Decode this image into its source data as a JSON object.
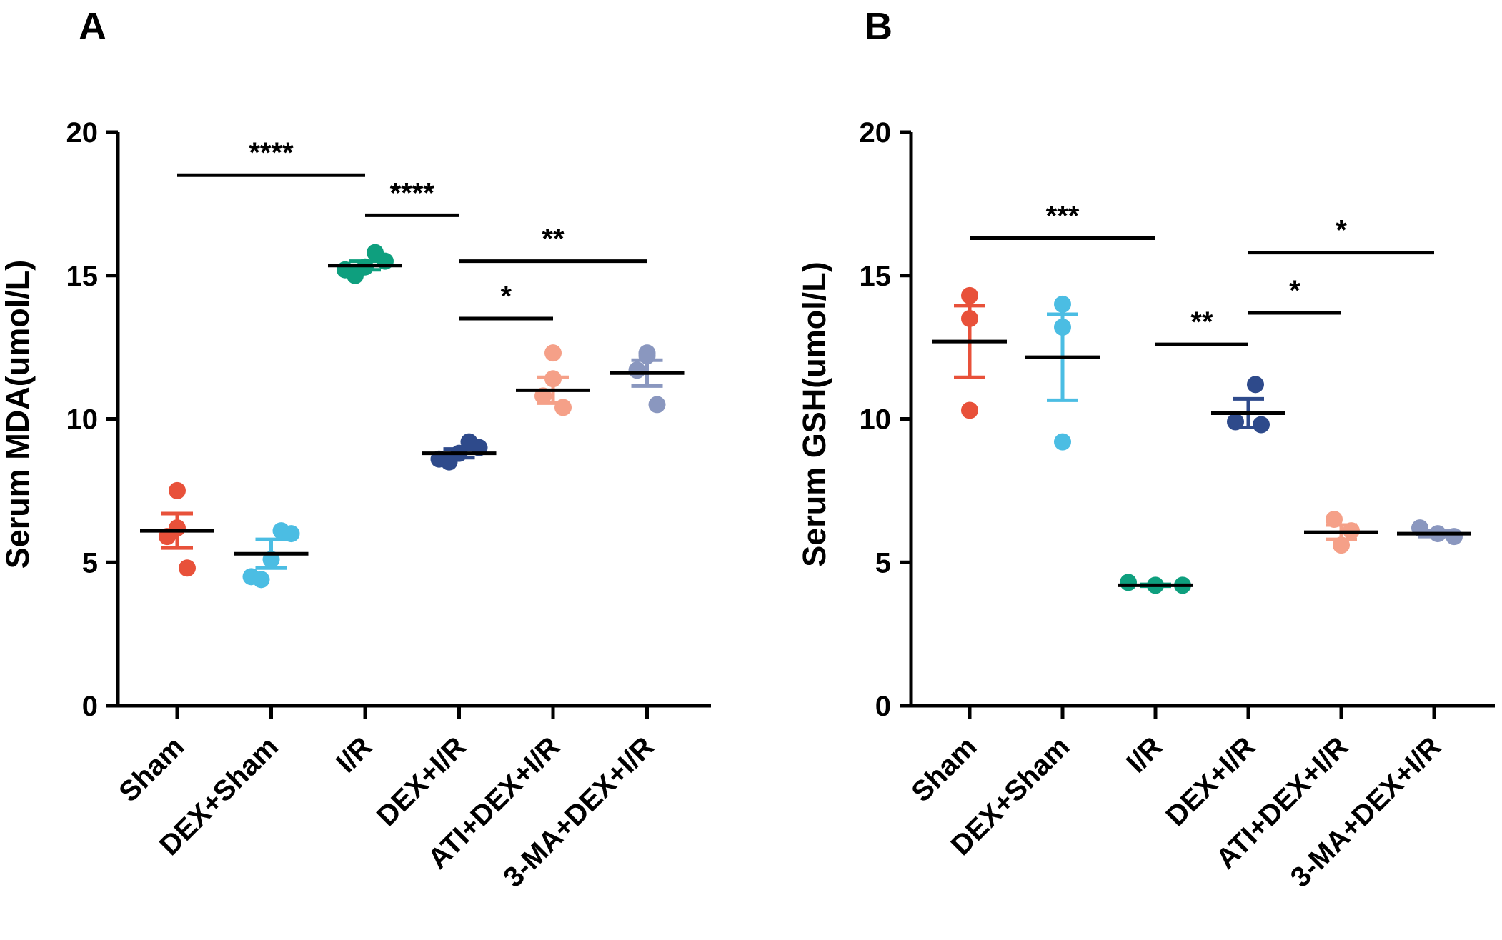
{
  "chart_data": [
    {
      "type": "scatter",
      "panel_label": "A",
      "ylabel": "Serum MDA(umol/L)",
      "ylim": [
        0,
        20
      ],
      "yticks": [
        0,
        5,
        10,
        15,
        20
      ],
      "categories": [
        "Sham",
        "DEX+Sham",
        "I/R",
        "DEX+I/R",
        "ATI+DEX+I/R",
        "3-MA+DEX+I/R"
      ],
      "colors": [
        "#e8513a",
        "#4bbde3",
        "#0e9f7e",
        "#2e4a8b",
        "#f5a088",
        "#8a97bf"
      ],
      "groups": [
        {
          "name": "Sham",
          "points": [
            7.5,
            6.2,
            5.9,
            4.8
          ],
          "mean": 6.1,
          "sem": 0.6
        },
        {
          "name": "DEX+Sham",
          "points": [
            6.1,
            6.0,
            5.1,
            4.5,
            4.4
          ],
          "mean": 5.3,
          "sem": 0.5
        },
        {
          "name": "I/R",
          "points": [
            15.8,
            15.5,
            15.3,
            15.2,
            15.0
          ],
          "mean": 15.35,
          "sem": 0.15
        },
        {
          "name": "DEX+I/R",
          "points": [
            9.2,
            9.0,
            8.8,
            8.6,
            8.5
          ],
          "mean": 8.8,
          "sem": 0.15
        },
        {
          "name": "ATI+DEX+I/R",
          "points": [
            12.3,
            11.4,
            10.8,
            10.4
          ],
          "mean": 11.0,
          "sem": 0.45
        },
        {
          "name": "3-MA+DEX+I/R",
          "points": [
            12.3,
            12.2,
            11.7,
            10.5
          ],
          "mean": 11.6,
          "sem": 0.45
        }
      ],
      "significance": [
        {
          "from": 0,
          "to": 2,
          "y": 18.5,
          "label": "****"
        },
        {
          "from": 2,
          "to": 3,
          "y": 17.1,
          "label": "****"
        },
        {
          "from": 3,
          "to": 5,
          "y": 15.5,
          "label": "**"
        },
        {
          "from": 3,
          "to": 4,
          "y": 13.5,
          "label": "*"
        }
      ]
    },
    {
      "type": "scatter",
      "panel_label": "B",
      "ylabel": "Serum GSH(umol/L)",
      "ylim": [
        0,
        20
      ],
      "yticks": [
        0,
        5,
        10,
        15,
        20
      ],
      "categories": [
        "Sham",
        "DEX+Sham",
        "I/R",
        "DEX+I/R",
        "ATI+DEX+I/R",
        "3-MA+DEX+I/R"
      ],
      "colors": [
        "#e8513a",
        "#4bbde3",
        "#0e9f7e",
        "#2e4a8b",
        "#f5a088",
        "#8a97bf"
      ],
      "groups": [
        {
          "name": "Sham",
          "points": [
            14.3,
            13.5,
            10.3
          ],
          "mean": 12.7,
          "sem": 1.25
        },
        {
          "name": "DEX+Sham",
          "points": [
            14.0,
            13.2,
            9.2
          ],
          "mean": 12.15,
          "sem": 1.5
        },
        {
          "name": "I/R",
          "points": [
            4.3,
            4.2,
            4.2
          ],
          "mean": 4.2,
          "sem": 0.03
        },
        {
          "name": "DEX+I/R",
          "points": [
            11.2,
            9.9,
            9.8
          ],
          "mean": 10.2,
          "sem": 0.5
        },
        {
          "name": "ATI+DEX+I/R",
          "points": [
            6.5,
            6.1,
            5.6
          ],
          "mean": 6.05,
          "sem": 0.25
        },
        {
          "name": "3-MA+DEX+I/R",
          "points": [
            6.2,
            6.0,
            5.9
          ],
          "mean": 6.0,
          "sem": 0.1
        }
      ],
      "significance": [
        {
          "from": 0,
          "to": 2,
          "y": 16.3,
          "label": "***"
        },
        {
          "from": 2,
          "to": 3,
          "y": 12.6,
          "label": "**"
        },
        {
          "from": 3,
          "to": 5,
          "y": 15.8,
          "label": "*"
        },
        {
          "from": 3,
          "to": 4,
          "y": 13.7,
          "label": "*"
        }
      ]
    }
  ]
}
